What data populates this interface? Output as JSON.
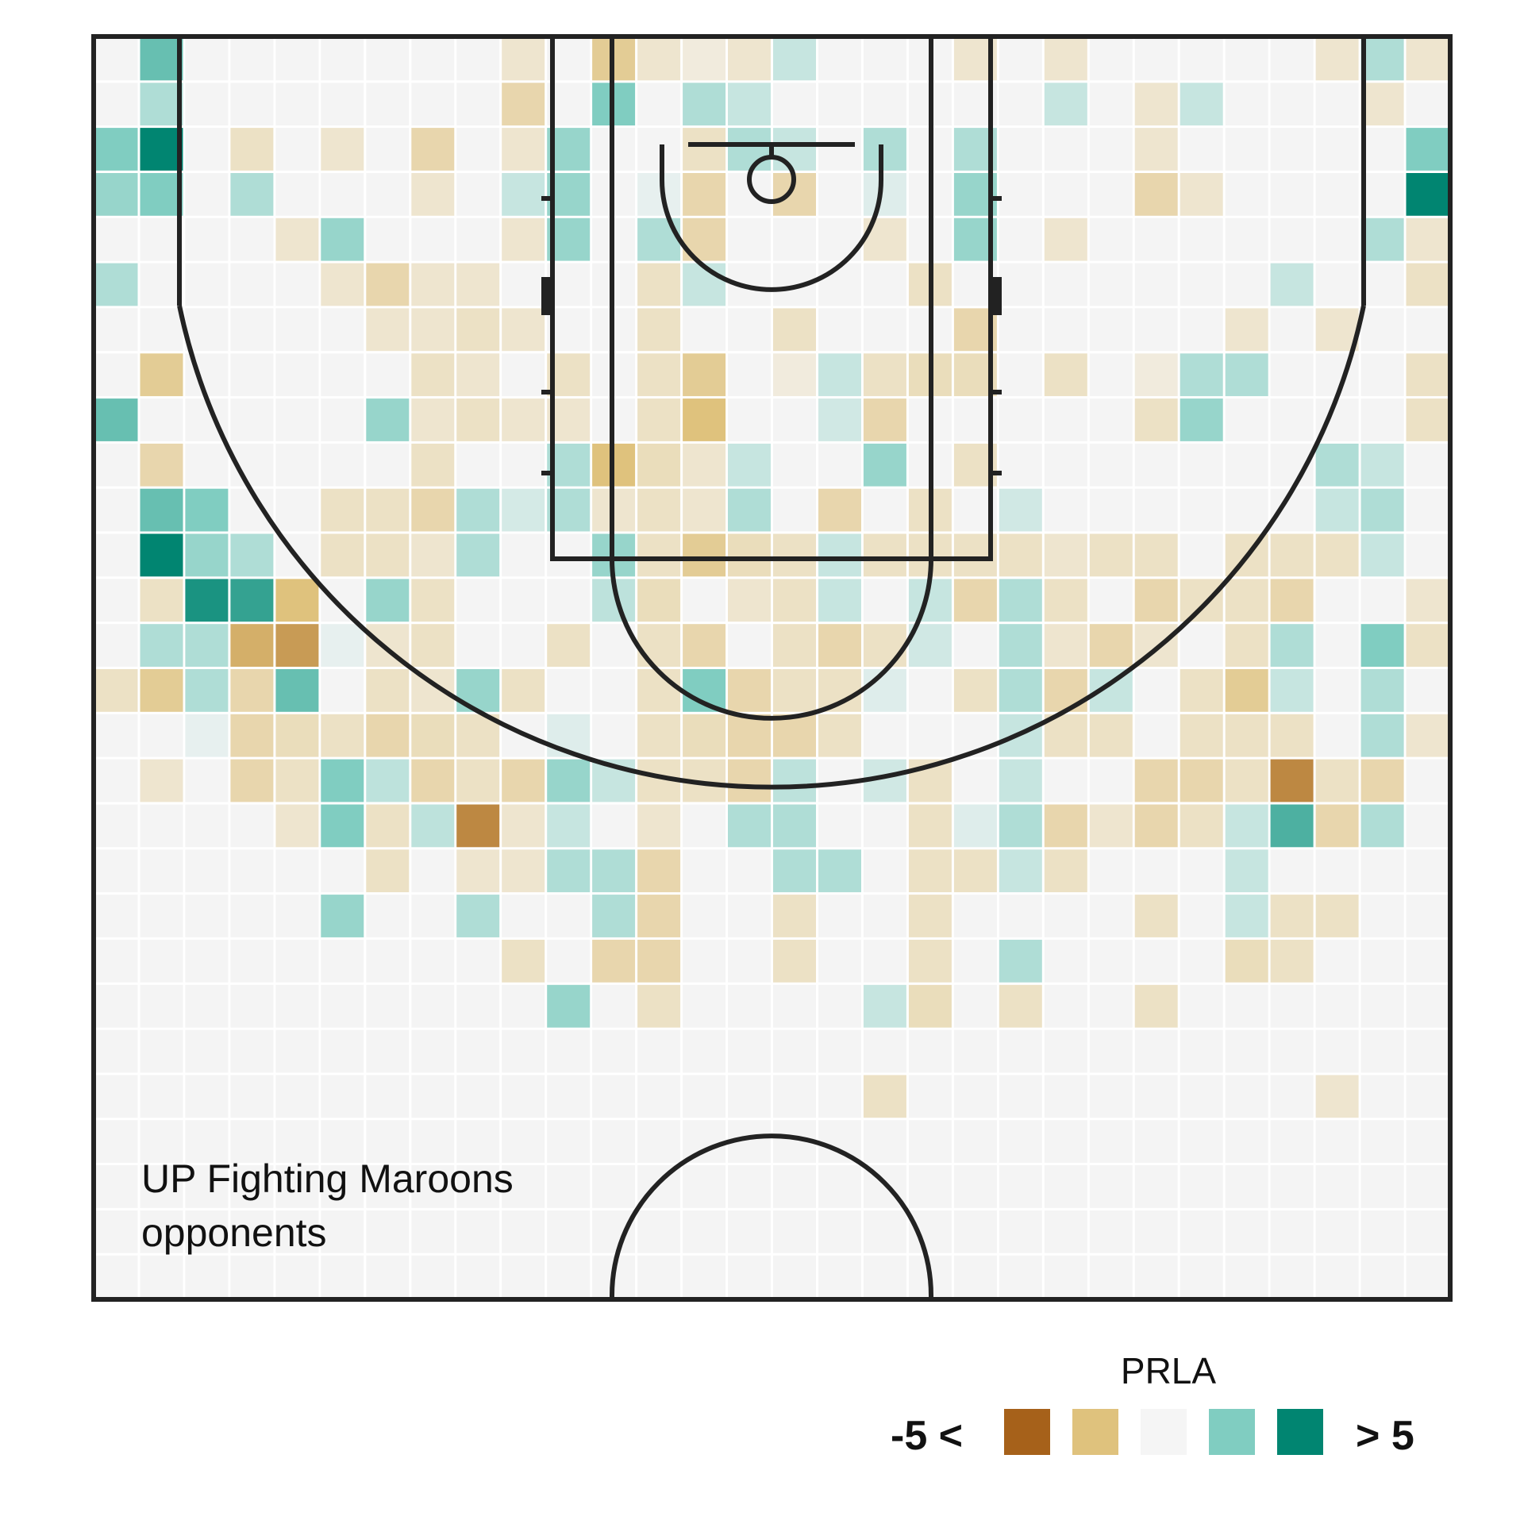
{
  "chart_data": {
    "type": "heatmap",
    "title": "",
    "xlabel": "",
    "ylabel": "",
    "grid": true,
    "team_label": [
      "UP Fighting Maroons",
      "opponents"
    ],
    "n_cols": 30,
    "n_rows": 28,
    "value_range": [
      -5,
      5
    ],
    "legend": {
      "title": "PRLA",
      "low_label": "-5 <",
      "high_label": "> 5",
      "placement": "bottom-right",
      "colors": [
        "#a6611a",
        "#dfc27d",
        "#f5f5f5",
        "#80cdc1",
        "#018571"
      ]
    },
    "court_color": "#222222",
    "empty_cell_color": "#f4f4f4",
    "cells": [
      [
        0,
        2,
        2.5
      ],
      [
        0,
        3,
        2
      ],
      [
        0,
        5,
        1.5
      ],
      [
        0,
        8,
        3
      ],
      [
        0,
        14,
        -1
      ],
      [
        1,
        0,
        3
      ],
      [
        1,
        1,
        1.5
      ],
      [
        1,
        2,
        5
      ],
      [
        1,
        3,
        2.5
      ],
      [
        1,
        7,
        -2
      ],
      [
        1,
        9,
        -1.5
      ],
      [
        1,
        10,
        3
      ],
      [
        1,
        11,
        5
      ],
      [
        1,
        12,
        -1
      ],
      [
        1,
        13,
        1.5
      ],
      [
        1,
        14,
        -2
      ],
      [
        1,
        16,
        -0.8
      ],
      [
        2,
        10,
        2.5
      ],
      [
        2,
        11,
        2
      ],
      [
        2,
        12,
        4.5
      ],
      [
        2,
        13,
        1.5
      ],
      [
        2,
        14,
        1.5
      ],
      [
        2,
        15,
        0.3
      ],
      [
        3,
        2,
        -1
      ],
      [
        3,
        3,
        1.5
      ],
      [
        3,
        11,
        1.5
      ],
      [
        3,
        12,
        4
      ],
      [
        3,
        13,
        -3
      ],
      [
        3,
        14,
        -1.5
      ],
      [
        3,
        15,
        -1.5
      ],
      [
        3,
        16,
        -1.5
      ],
      [
        4,
        4,
        -0.8
      ],
      [
        4,
        12,
        -2.5
      ],
      [
        4,
        13,
        -3.5
      ],
      [
        4,
        14,
        3
      ],
      [
        4,
        15,
        -1.2
      ],
      [
        4,
        16,
        -1
      ],
      [
        4,
        17,
        -0.8
      ],
      [
        5,
        2,
        -0.8
      ],
      [
        5,
        4,
        2
      ],
      [
        5,
        5,
        -0.8
      ],
      [
        5,
        10,
        -1
      ],
      [
        5,
        11,
        -1
      ],
      [
        5,
        13,
        0.3
      ],
      [
        5,
        15,
        -1
      ],
      [
        5,
        16,
        2.5
      ],
      [
        5,
        17,
        2.5
      ],
      [
        5,
        19,
        2
      ],
      [
        6,
        5,
        -1.5
      ],
      [
        6,
        6,
        -0.8
      ],
      [
        6,
        8,
        2
      ],
      [
        6,
        10,
        -1
      ],
      [
        6,
        11,
        -1
      ],
      [
        6,
        12,
        2
      ],
      [
        6,
        13,
        -0.8
      ],
      [
        6,
        14,
        -1
      ],
      [
        6,
        15,
        -1.5
      ],
      [
        6,
        16,
        1.2
      ],
      [
        6,
        17,
        -1
      ],
      [
        6,
        18,
        -1
      ],
      [
        7,
        2,
        -1.5
      ],
      [
        7,
        3,
        -0.8
      ],
      [
        7,
        5,
        -0.8
      ],
      [
        7,
        6,
        -0.8
      ],
      [
        7,
        7,
        -1
      ],
      [
        7,
        8,
        -0.8
      ],
      [
        7,
        9,
        -1
      ],
      [
        7,
        10,
        -1.5
      ],
      [
        7,
        11,
        -0.8
      ],
      [
        7,
        12,
        -1
      ],
      [
        7,
        13,
        -1
      ],
      [
        7,
        14,
        -0.8
      ],
      [
        7,
        15,
        -1.2
      ],
      [
        7,
        16,
        -1.5
      ],
      [
        7,
        17,
        1.2
      ],
      [
        8,
        5,
        -0.8
      ],
      [
        8,
        6,
        -1
      ],
      [
        8,
        7,
        -0.8
      ],
      [
        8,
        8,
        -1
      ],
      [
        8,
        10,
        1.5
      ],
      [
        8,
        11,
        1.5
      ],
      [
        8,
        14,
        2
      ],
      [
        8,
        15,
        -1
      ],
      [
        8,
        16,
        -1
      ],
      [
        8,
        17,
        -4
      ],
      [
        8,
        18,
        -0.8
      ],
      [
        8,
        19,
        1.5
      ],
      [
        9,
        0,
        -0.8
      ],
      [
        9,
        1,
        -1.5
      ],
      [
        9,
        2,
        -0.8
      ],
      [
        9,
        3,
        1
      ],
      [
        9,
        4,
        -0.8
      ],
      [
        9,
        6,
        -0.8
      ],
      [
        9,
        8,
        -0.8
      ],
      [
        9,
        10,
        0.7
      ],
      [
        9,
        14,
        -1
      ],
      [
        9,
        16,
        -1.5
      ],
      [
        9,
        17,
        -0.8
      ],
      [
        9,
        18,
        -0.8
      ],
      [
        9,
        20,
        -1
      ],
      [
        10,
        2,
        2
      ],
      [
        10,
        3,
        2
      ],
      [
        10,
        4,
        2
      ],
      [
        10,
        7,
        -1
      ],
      [
        10,
        8,
        -0.8
      ],
      [
        10,
        9,
        1.5
      ],
      [
        10,
        10,
        1.5
      ],
      [
        10,
        13,
        -1
      ],
      [
        10,
        15,
        0.5
      ],
      [
        10,
        16,
        2
      ],
      [
        10,
        17,
        1
      ],
      [
        10,
        18,
        1.5
      ],
      [
        10,
        21,
        2
      ],
      [
        11,
        0,
        -2
      ],
      [
        11,
        1,
        2.5
      ],
      [
        11,
        9,
        -2.5
      ],
      [
        11,
        10,
        -0.8
      ],
      [
        11,
        11,
        2
      ],
      [
        11,
        12,
        1.2
      ],
      [
        11,
        16,
        1
      ],
      [
        11,
        18,
        1.5
      ],
      [
        11,
        19,
        1.5
      ],
      [
        11,
        20,
        -1.5
      ],
      [
        12,
        0,
        -0.8
      ],
      [
        12,
        3,
        0.3
      ],
      [
        12,
        4,
        1.5
      ],
      [
        12,
        5,
        -1
      ],
      [
        12,
        6,
        -1
      ],
      [
        12,
        7,
        -1
      ],
      [
        12,
        8,
        -1
      ],
      [
        12,
        9,
        -1.2
      ],
      [
        12,
        10,
        -1
      ],
      [
        12,
        11,
        -1
      ],
      [
        12,
        12,
        -1.2
      ],
      [
        12,
        13,
        -1
      ],
      [
        12,
        14,
        -1
      ],
      [
        12,
        15,
        -1
      ],
      [
        12,
        16,
        -1
      ],
      [
        12,
        17,
        -0.8
      ],
      [
        12,
        18,
        -1.5
      ],
      [
        12,
        19,
        -1.5
      ],
      [
        12,
        20,
        -1.5
      ],
      [
        12,
        21,
        -1
      ],
      [
        13,
        0,
        -0.5
      ],
      [
        13,
        1,
        1.5
      ],
      [
        13,
        2,
        -1
      ],
      [
        13,
        3,
        -1.5
      ],
      [
        13,
        4,
        -1.5
      ],
      [
        13,
        5,
        1
      ],
      [
        13,
        7,
        -2
      ],
      [
        13,
        8,
        -2.5
      ],
      [
        13,
        9,
        -0.8
      ],
      [
        13,
        10,
        -0.8
      ],
      [
        13,
        11,
        -2
      ],
      [
        13,
        13,
        -1.5
      ],
      [
        13,
        14,
        2.5
      ],
      [
        13,
        15,
        -1.2
      ],
      [
        13,
        16,
        -1
      ],
      [
        14,
        0,
        -0.8
      ],
      [
        14,
        1,
        1
      ],
      [
        14,
        2,
        1.5
      ],
      [
        14,
        9,
        1
      ],
      [
        14,
        10,
        1.5
      ],
      [
        14,
        11,
        -1.2
      ],
      [
        14,
        12,
        -0.8
      ],
      [
        14,
        14,
        -1.5
      ],
      [
        14,
        15,
        -1.5
      ],
      [
        14,
        16,
        -1.5
      ],
      [
        14,
        17,
        1.5
      ],
      [
        15,
        0,
        1
      ],
      [
        15,
        2,
        1
      ],
      [
        15,
        3,
        -1.5
      ],
      [
        15,
        6,
        -1
      ],
      [
        15,
        7,
        -0.5
      ],
      [
        15,
        11,
        -1
      ],
      [
        15,
        12,
        -1
      ],
      [
        15,
        13,
        -1
      ],
      [
        15,
        14,
        -1
      ],
      [
        15,
        15,
        -1.5
      ],
      [
        15,
        16,
        1.2
      ],
      [
        15,
        17,
        1.5
      ],
      [
        15,
        18,
        1.5
      ],
      [
        15,
        19,
        -1
      ],
      [
        15,
        20,
        -1
      ],
      [
        16,
        7,
        1
      ],
      [
        16,
        8,
        0.8
      ],
      [
        16,
        10,
        -1.5
      ],
      [
        16,
        11,
        1
      ],
      [
        16,
        12,
        1
      ],
      [
        16,
        13,
        -1.5
      ],
      [
        16,
        14,
        -1
      ],
      [
        16,
        15,
        -1
      ],
      [
        16,
        18,
        1.5
      ],
      [
        17,
        2,
        1.5
      ],
      [
        17,
        3,
        0.5
      ],
      [
        17,
        4,
        -0.8
      ],
      [
        17,
        7,
        -1
      ],
      [
        17,
        8,
        -1.5
      ],
      [
        17,
        9,
        2
      ],
      [
        17,
        11,
        -1
      ],
      [
        17,
        13,
        -1
      ],
      [
        17,
        14,
        0.5
      ],
      [
        17,
        16,
        0.8
      ],
      [
        17,
        21,
        1
      ],
      [
        17,
        23,
        -1
      ],
      [
        18,
        5,
        -1
      ],
      [
        18,
        7,
        -1.2
      ],
      [
        18,
        10,
        -1
      ],
      [
        18,
        11,
        -1
      ],
      [
        18,
        12,
        1
      ],
      [
        18,
        13,
        0.8
      ],
      [
        18,
        16,
        -1
      ],
      [
        18,
        17,
        -1
      ],
      [
        18,
        18,
        -1
      ],
      [
        18,
        19,
        -1
      ],
      [
        18,
        20,
        -1
      ],
      [
        18,
        21,
        -1.2
      ],
      [
        19,
        0,
        -0.8
      ],
      [
        19,
        2,
        1.5
      ],
      [
        19,
        3,
        2
      ],
      [
        19,
        4,
        2
      ],
      [
        19,
        6,
        -1.5
      ],
      [
        19,
        7,
        -1.2
      ],
      [
        19,
        9,
        -1
      ],
      [
        19,
        11,
        -1
      ],
      [
        19,
        12,
        -1.5
      ],
      [
        19,
        14,
        -1
      ],
      [
        19,
        17,
        0.5
      ],
      [
        19,
        18,
        -1
      ],
      [
        20,
        10,
        0.8
      ],
      [
        20,
        11,
        -1
      ],
      [
        20,
        12,
        1.5
      ],
      [
        20,
        13,
        1.5
      ],
      [
        20,
        14,
        1.5
      ],
      [
        20,
        15,
        1
      ],
      [
        20,
        16,
        1
      ],
      [
        20,
        17,
        1.5
      ],
      [
        20,
        18,
        1
      ],
      [
        20,
        20,
        1.5
      ],
      [
        20,
        21,
        -1
      ],
      [
        21,
        0,
        -0.8
      ],
      [
        21,
        1,
        1
      ],
      [
        21,
        4,
        -0.8
      ],
      [
        21,
        7,
        -1
      ],
      [
        21,
        11,
        -0.8
      ],
      [
        21,
        12,
        -1
      ],
      [
        21,
        13,
        -0.8
      ],
      [
        21,
        14,
        -1.5
      ],
      [
        21,
        15,
        -1
      ],
      [
        21,
        17,
        -1.5
      ],
      [
        21,
        18,
        -1
      ],
      [
        22,
        11,
        -1
      ],
      [
        22,
        13,
        -1.5
      ],
      [
        22,
        14,
        1
      ],
      [
        22,
        15,
        -1
      ],
      [
        22,
        17,
        -0.8
      ],
      [
        23,
        1,
        -0.8
      ],
      [
        23,
        2,
        -0.8
      ],
      [
        23,
        3,
        -1.5
      ],
      [
        23,
        7,
        -0.5
      ],
      [
        23,
        8,
        -1
      ],
      [
        23,
        11,
        -1
      ],
      [
        23,
        12,
        -1.5
      ],
      [
        23,
        13,
        -0.8
      ],
      [
        23,
        16,
        -1.5
      ],
      [
        23,
        17,
        -1.5
      ],
      [
        23,
        19,
        -1
      ],
      [
        23,
        21,
        -1
      ],
      [
        24,
        1,
        1
      ],
      [
        24,
        3,
        -0.8
      ],
      [
        24,
        7,
        1.5
      ],
      [
        24,
        8,
        2
      ],
      [
        24,
        12,
        -1
      ],
      [
        24,
        14,
        -1
      ],
      [
        24,
        15,
        -1
      ],
      [
        24,
        16,
        -1.5
      ],
      [
        24,
        17,
        -1
      ],
      [
        25,
        6,
        -0.8
      ],
      [
        25,
        7,
        1.5
      ],
      [
        25,
        11,
        -1
      ],
      [
        25,
        12,
        -1
      ],
      [
        25,
        13,
        -1
      ],
      [
        25,
        14,
        -2
      ],
      [
        25,
        15,
        -1
      ],
      [
        25,
        16,
        -1
      ],
      [
        25,
        17,
        1
      ],
      [
        25,
        18,
        1
      ],
      [
        25,
        19,
        1
      ],
      [
        25,
        20,
        -1.2
      ],
      [
        26,
        5,
        1
      ],
      [
        26,
        11,
        -1
      ],
      [
        26,
        12,
        -1.5
      ],
      [
        26,
        13,
        1.5
      ],
      [
        26,
        14,
        1
      ],
      [
        26,
        15,
        -1
      ],
      [
        26,
        16,
        -4
      ],
      [
        26,
        17,
        3.5
      ],
      [
        26,
        19,
        -1
      ],
      [
        26,
        20,
        -1
      ],
      [
        27,
        0,
        -0.8
      ],
      [
        27,
        6,
        -0.8
      ],
      [
        27,
        9,
        1.5
      ],
      [
        27,
        10,
        1
      ],
      [
        27,
        11,
        -1
      ],
      [
        27,
        16,
        -1
      ],
      [
        27,
        17,
        -1.5
      ],
      [
        27,
        19,
        -1
      ],
      [
        27,
        23,
        -0.8
      ],
      [
        28,
        0,
        1.5
      ],
      [
        28,
        1,
        -0.8
      ],
      [
        28,
        4,
        1.5
      ],
      [
        28,
        9,
        1
      ],
      [
        28,
        10,
        1.5
      ],
      [
        28,
        11,
        1
      ],
      [
        28,
        13,
        2.5
      ],
      [
        28,
        14,
        1.5
      ],
      [
        28,
        15,
        1.5
      ],
      [
        28,
        16,
        -1.5
      ],
      [
        28,
        17,
        1.5
      ],
      [
        29,
        0,
        -0.8
      ],
      [
        29,
        2,
        2.5
      ],
      [
        29,
        3,
        5
      ],
      [
        29,
        4,
        -0.8
      ],
      [
        29,
        5,
        -1
      ],
      [
        29,
        7,
        -1
      ],
      [
        29,
        8,
        -1
      ],
      [
        29,
        12,
        -0.8
      ],
      [
        29,
        13,
        -1
      ],
      [
        29,
        15,
        -0.8
      ]
    ]
  }
}
